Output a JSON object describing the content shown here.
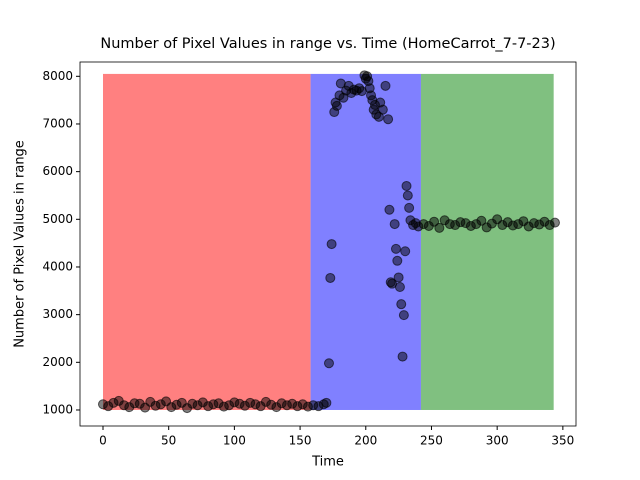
{
  "chart_data": {
    "type": "scatter",
    "title": "Number of Pixel Values in range vs. Time (HomeCarrot_7-7-23)",
    "x_label": "Time",
    "y_label": "Number of Pixel Values in range",
    "xlim": [
      -17.5,
      360
    ],
    "ylim": [
      664,
      8300
    ],
    "xticks": [
      0,
      50,
      100,
      150,
      200,
      250,
      300,
      350
    ],
    "yticks": [
      1000,
      2000,
      3000,
      4000,
      5000,
      6000,
      7000,
      8000
    ],
    "bands": [
      {
        "x0": 0,
        "x1": 158,
        "bottom": 1000,
        "top": 8050,
        "color": "#ff8080"
      },
      {
        "x0": 158,
        "x1": 242,
        "bottom": 1000,
        "top": 8050,
        "color": "#8080ff"
      },
      {
        "x0": 242,
        "x1": 343,
        "bottom": 1000,
        "top": 8050,
        "color": "#80c080"
      }
    ],
    "color": "#000000",
    "x": [
      0,
      4,
      8,
      12,
      16,
      20,
      24,
      28,
      32,
      36,
      40,
      44,
      48,
      52,
      56,
      60,
      64,
      68,
      72,
      76,
      80,
      84,
      88,
      92,
      96,
      100,
      104,
      108,
      112,
      116,
      120,
      124,
      128,
      132,
      136,
      140,
      144,
      148,
      152,
      156,
      160,
      164,
      168,
      170,
      172,
      173,
      174,
      176,
      177,
      178,
      180,
      181,
      183,
      185,
      187,
      189,
      191,
      193,
      195,
      197,
      199,
      200,
      201,
      202,
      203,
      204,
      205,
      206,
      207,
      208,
      210,
      211,
      213,
      215,
      217,
      218,
      219,
      220,
      222,
      223,
      224,
      225,
      226,
      227,
      228,
      229,
      230,
      231,
      232,
      233,
      234,
      236,
      238,
      240,
      244,
      248,
      252,
      256,
      260,
      264,
      268,
      272,
      276,
      280,
      284,
      288,
      292,
      296,
      300,
      304,
      308,
      312,
      316,
      320,
      324,
      328,
      332,
      336,
      340,
      344
    ],
    "values": [
      1120,
      1080,
      1150,
      1190,
      1100,
      1060,
      1140,
      1130,
      1050,
      1170,
      1090,
      1120,
      1180,
      1060,
      1110,
      1150,
      1040,
      1130,
      1100,
      1160,
      1080,
      1120,
      1140,
      1070,
      1100,
      1160,
      1130,
      1090,
      1150,
      1120,
      1080,
      1170,
      1110,
      1060,
      1140,
      1100,
      1130,
      1080,
      1120,
      1070,
      1100,
      1080,
      1120,
      1150,
      1980,
      3770,
      4480,
      7250,
      7450,
      7380,
      7600,
      7850,
      7550,
      7700,
      7800,
      7650,
      7720,
      7700,
      7750,
      7690,
      8020,
      7950,
      8000,
      7900,
      7750,
      7600,
      7500,
      7300,
      7400,
      7200,
      7150,
      7450,
      7300,
      7800,
      7100,
      5200,
      3680,
      3650,
      4900,
      4380,
      4130,
      3780,
      3580,
      3220,
      2120,
      2990,
      4330,
      5700,
      5500,
      5240,
      4980,
      4880,
      4920,
      4850,
      4900,
      4860,
      4950,
      4820,
      4980,
      4900,
      4880,
      4940,
      4920,
      4860,
      4900,
      4970,
      4830,
      4910,
      5000,
      4880,
      4940,
      4870,
      4900,
      4960,
      4850,
      4920,
      4890,
      4950,
      4880,
      4930
    ]
  }
}
